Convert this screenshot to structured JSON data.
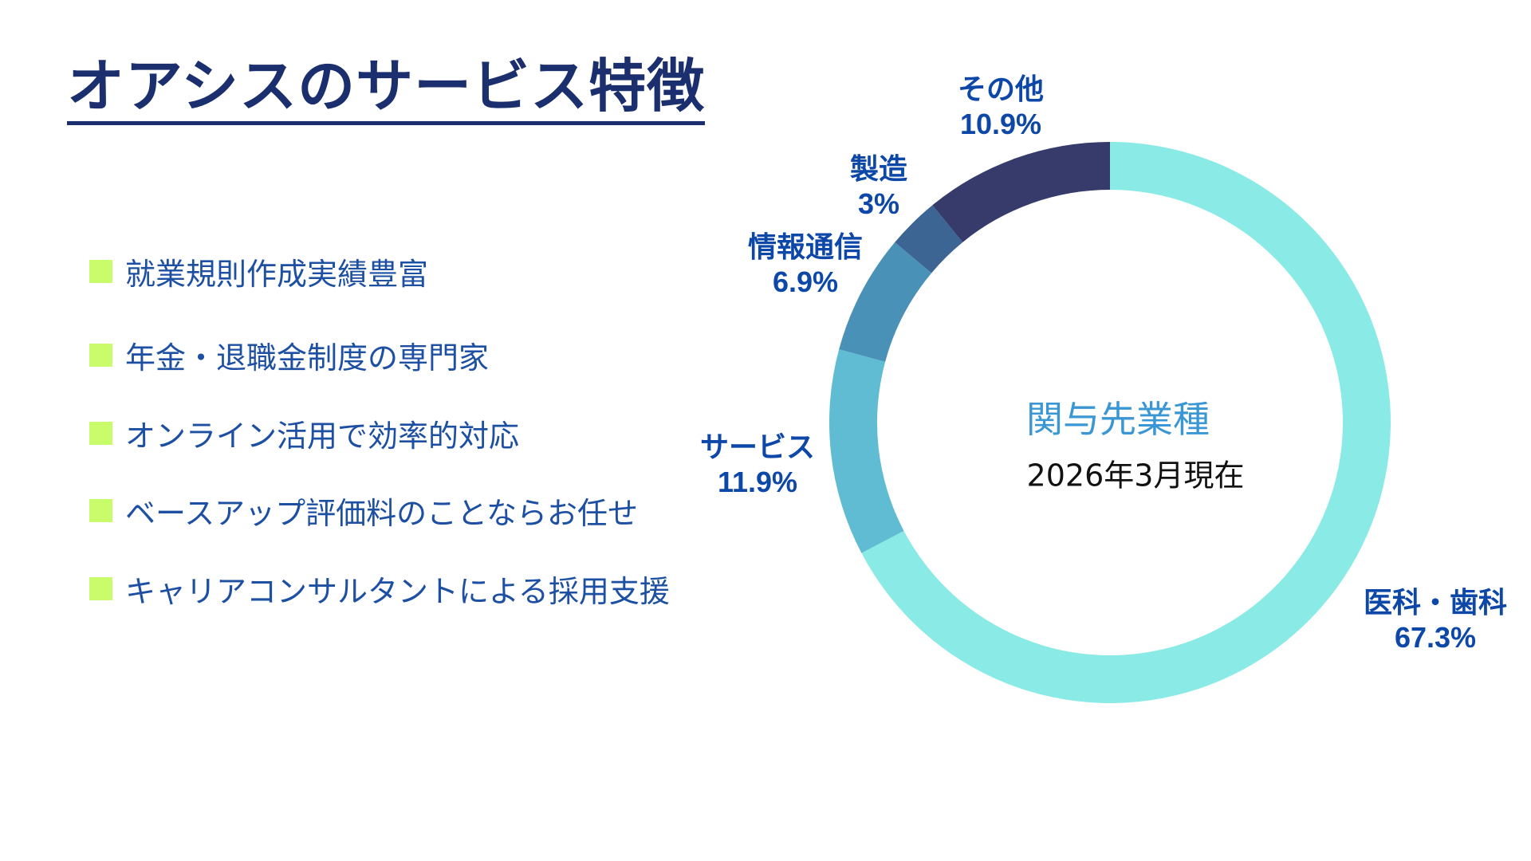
{
  "title": "オアシスのサービス特徴",
  "bullet_color": "#c8fc6a",
  "bullets": [
    "就業規則作成実績豊富",
    "年金・退職金制度の専門家",
    "オンライン活用で効率的対応",
    "ベースアップ評価料のことならお任せ",
    "キャリアコンサルタントによる採用支援"
  ],
  "chart_data": {
    "type": "pie",
    "donut": true,
    "title": "関与先業種",
    "subtitle": "2026年3月現在",
    "start": "top",
    "direction": "clockwise",
    "slices": [
      {
        "label": "医科・歯科",
        "value": 67.3,
        "value_label": "67.3%",
        "color": "#8aeae6"
      },
      {
        "label": "サービス",
        "value": 11.9,
        "value_label": "11.9%",
        "color": "#5fbcd3"
      },
      {
        "label": "情報通信",
        "value": 6.9,
        "value_label": "6.9%",
        "color": "#4a91b8"
      },
      {
        "label": "製造",
        "value": 3,
        "value_label": "3%",
        "color": "#3c6594"
      },
      {
        "label": "その他",
        "value": 10.9,
        "value_label": "10.9%",
        "color": "#363b6b"
      }
    ]
  }
}
